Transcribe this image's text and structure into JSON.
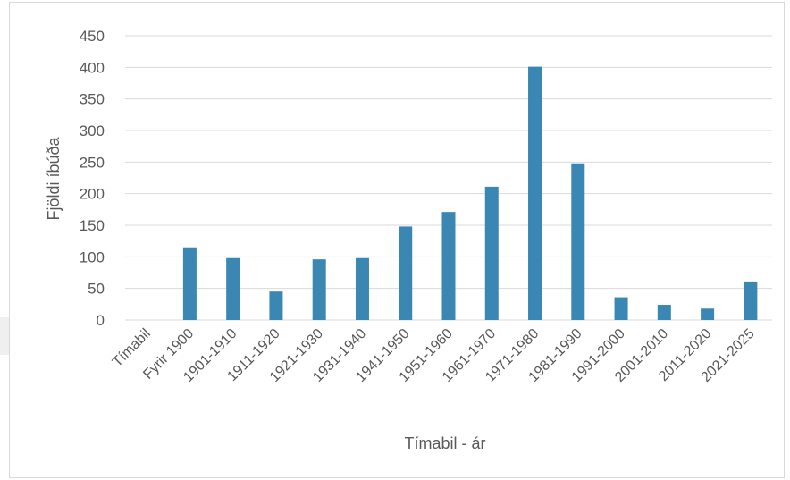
{
  "chart_data": {
    "type": "bar",
    "categories": [
      "Tímabil",
      "Fyrir 1900",
      "1901-1910",
      "1911-1920",
      "1921-1930",
      "1931-1940",
      "1941-1950",
      "1951-1960",
      "1961-1970",
      "1971-1980",
      "1981-1990",
      "1991-2000",
      "2001-2010",
      "2011-2020",
      "2021-2025"
    ],
    "values": [
      0,
      115,
      98,
      45,
      96,
      98,
      148,
      171,
      211,
      401,
      248,
      36,
      24,
      18,
      61
    ],
    "xlabel": "Tímabil - ár",
    "ylabel": "Fjöldi íbúða",
    "ylim": [
      0,
      450
    ],
    "yticks": [
      0,
      50,
      100,
      150,
      200,
      250,
      300,
      350,
      400,
      450
    ],
    "grid": true,
    "legend": "none",
    "bar_color": "#3a87b4",
    "grid_color": "#d9d9d9"
  }
}
